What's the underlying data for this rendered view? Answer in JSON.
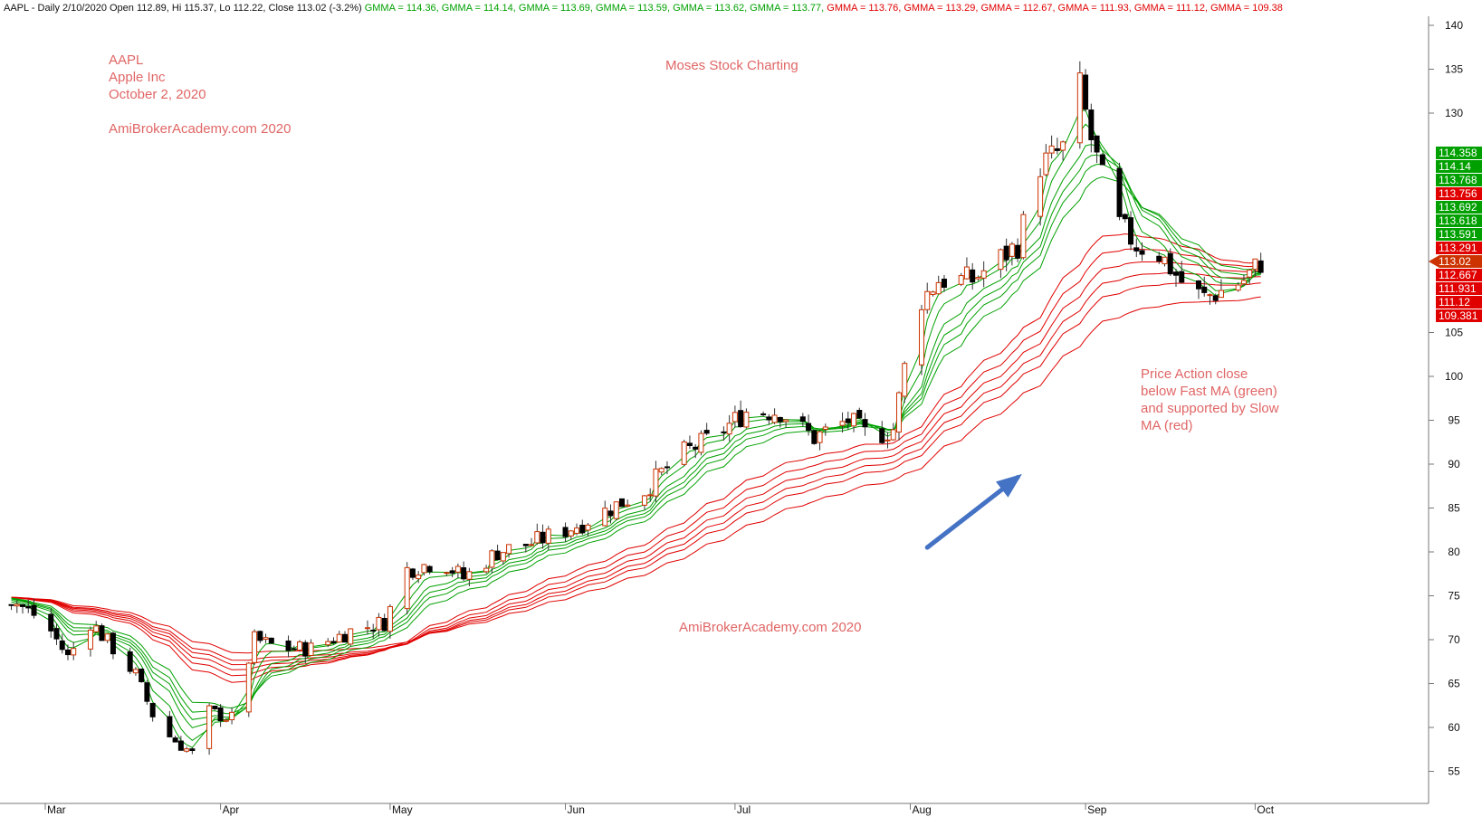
{
  "header": {
    "prefix": "AAPL - Daily 2/10/2020 Open 112.89, Hi 115.37, Lo 112.22, Close 113.02 (-3.2%)",
    "gmma": [
      {
        "text": "GMMA = 114.36,",
        "color": "#00a000"
      },
      {
        "text": "GMMA = 114.14,",
        "color": "#00a000"
      },
      {
        "text": "GMMA = 113.69,",
        "color": "#00a000"
      },
      {
        "text": "GMMA = 113.59,",
        "color": "#00a000"
      },
      {
        "text": "GMMA = 113.62,",
        "color": "#00a000"
      },
      {
        "text": "GMMA = 113.77,",
        "color": "#00a000"
      },
      {
        "text": "GMMA = 113.76,",
        "color": "#e00000"
      },
      {
        "text": "GMMA = 113.29,",
        "color": "#e00000"
      },
      {
        "text": "GMMA = 112.67,",
        "color": "#e00000"
      },
      {
        "text": "GMMA = 111.93,",
        "color": "#e00000"
      },
      {
        "text": "GMMA = 111.12,",
        "color": "#e00000"
      },
      {
        "text": "GMMA = 109.38",
        "color": "#e00000"
      }
    ]
  },
  "annotations": {
    "ticker": "AAPL",
    "company": "Apple Inc",
    "date": "October 2, 2020",
    "site_top": "AmiBrokerAcademy.com  2020",
    "center_title": "Moses Stock Charting",
    "site_bottom": "AmiBrokerAcademy.com  2020",
    "note": [
      "Price Action close",
      "below Fast MA (green)",
      "and supported by Slow",
      "MA (red)"
    ],
    "color": "#e06666"
  },
  "value_labels": [
    {
      "text": "114.358",
      "color": "#00a000"
    },
    {
      "text": "114.14",
      "color": "#00a000"
    },
    {
      "text": "113.768",
      "color": "#00a000"
    },
    {
      "text": "113.756",
      "color": "#e00000"
    },
    {
      "text": "113.692",
      "color": "#00a000"
    },
    {
      "text": "113.618",
      "color": "#00a000"
    },
    {
      "text": "113.591",
      "color": "#00a000"
    },
    {
      "text": "113.291",
      "color": "#e00000"
    },
    {
      "text": "113.02",
      "color": "#cc3300"
    },
    {
      "text": "112.667",
      "color": "#e00000"
    },
    {
      "text": "111.931",
      "color": "#e00000"
    },
    {
      "text": "111.12",
      "color": "#e00000"
    },
    {
      "text": "109.381",
      "color": "#e00000"
    }
  ],
  "chart_data": {
    "type": "candlestick",
    "title": "",
    "xlabel": "",
    "ylabel": "",
    "ylim": [
      52,
      142
    ],
    "y_ticks": [
      55,
      60,
      65,
      70,
      75,
      80,
      85,
      90,
      95,
      100,
      105,
      130,
      135,
      140
    ],
    "x_ticks": [
      {
        "label": "Mar",
        "day": 0
      },
      {
        "label": "Apr",
        "day": 31
      },
      {
        "label": "May",
        "day": 61
      },
      {
        "label": "Jun",
        "day": 92
      },
      {
        "label": "Jul",
        "day": 122
      },
      {
        "label": "Aug",
        "day": 153
      },
      {
        "label": "Sep",
        "day": 184
      },
      {
        "label": "Oct",
        "day": 214
      }
    ],
    "colors": {
      "up": "#ffffff",
      "down": "#000000",
      "wick": "#333333",
      "up_border": "#cc3300",
      "fast": "#00a000",
      "slow": "#e00000",
      "arrow": "#4472c4"
    },
    "price_key": [
      [
        -7,
        75
      ],
      [
        0,
        72
      ],
      [
        4,
        68
      ],
      [
        8,
        72
      ],
      [
        16,
        66
      ],
      [
        20,
        60
      ],
      [
        26,
        57
      ],
      [
        28,
        62
      ],
      [
        33,
        61
      ],
      [
        37,
        70
      ],
      [
        42,
        69
      ],
      [
        47,
        69
      ],
      [
        54,
        71
      ],
      [
        60,
        72
      ],
      [
        64,
        78
      ],
      [
        70,
        79
      ],
      [
        74,
        77
      ],
      [
        80,
        80
      ],
      [
        86,
        81
      ],
      [
        94,
        83
      ],
      [
        100,
        85
      ],
      [
        106,
        87
      ],
      [
        112,
        91
      ],
      [
        118,
        93
      ],
      [
        124,
        96
      ],
      [
        130,
        96
      ],
      [
        136,
        93
      ],
      [
        142,
        95
      ],
      [
        146,
        93
      ],
      [
        150,
        94
      ],
      [
        154,
        108
      ],
      [
        158,
        111
      ],
      [
        164,
        111
      ],
      [
        168,
        113
      ],
      [
        172,
        115
      ],
      [
        176,
        124
      ],
      [
        180,
        126
      ],
      [
        183,
        133
      ],
      [
        185,
        127
      ],
      [
        189,
        118
      ],
      [
        193,
        115
      ],
      [
        197,
        114
      ],
      [
        202,
        110
      ],
      [
        205,
        109
      ],
      [
        209,
        110
      ],
      [
        212,
        111
      ],
      [
        215,
        113
      ]
    ],
    "fast_ma_periods": [
      3,
      5,
      8,
      10,
      12,
      15
    ],
    "slow_ma_periods": [
      30,
      35,
      40,
      45,
      50,
      60
    ],
    "series_values_last": {
      "fast": [
        114.36,
        114.14,
        113.69,
        113.59,
        113.62,
        113.77
      ],
      "slow": [
        113.76,
        113.29,
        112.67,
        111.93,
        111.12,
        109.38
      ]
    },
    "last_close": 113.02,
    "arrow": {
      "from": [
        156,
        80.5
      ],
      "to": [
        172,
        88.5
      ]
    }
  }
}
